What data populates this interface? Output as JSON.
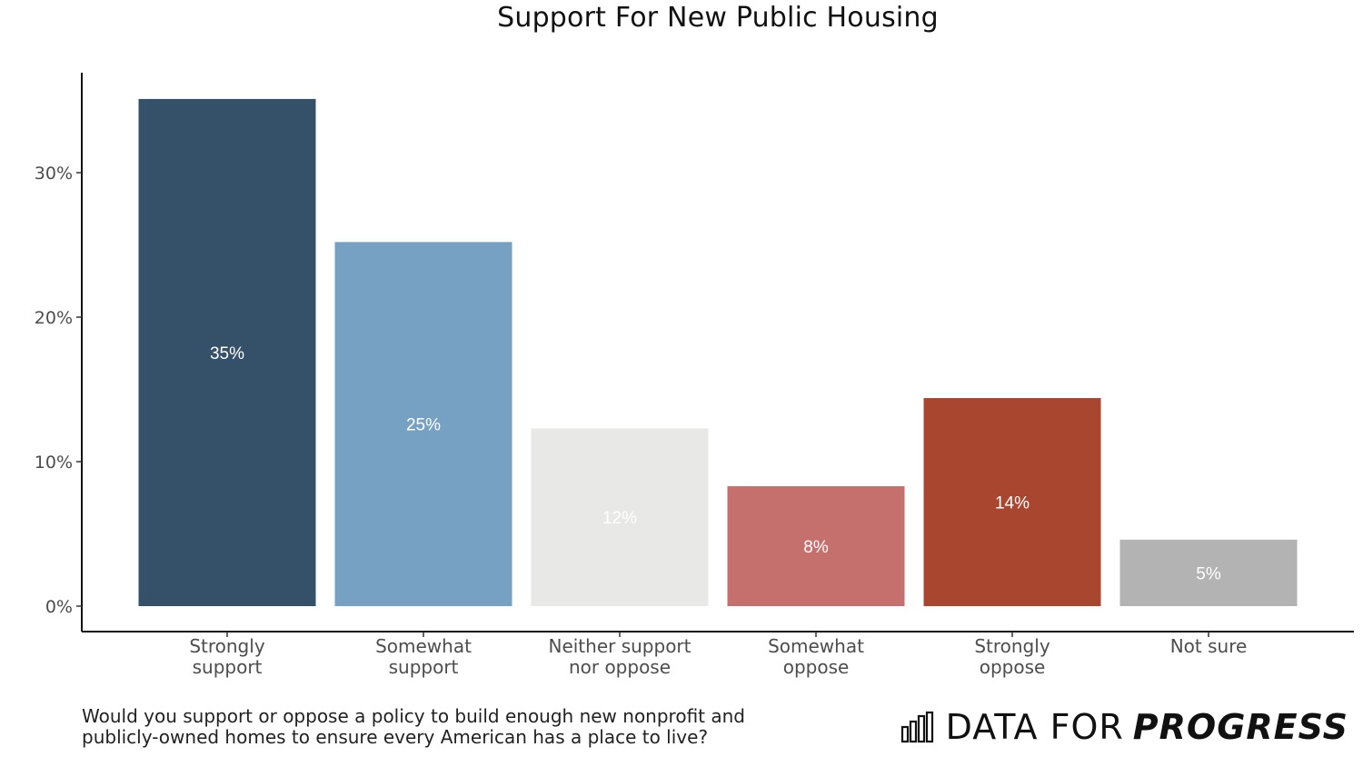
{
  "chart_data": {
    "type": "bar",
    "title": "Support For New Public Housing",
    "categories": [
      [
        "Strongly",
        "support"
      ],
      [
        "Somewhat",
        "support"
      ],
      [
        "Neither support",
        "nor oppose"
      ],
      [
        "Somewhat",
        "oppose"
      ],
      [
        "Strongly",
        "oppose"
      ],
      [
        "Not sure"
      ]
    ],
    "values": [
      35.1,
      25.2,
      12.3,
      8.3,
      14.4,
      4.6
    ],
    "data_labels": [
      "35%",
      "25%",
      "12%",
      "8%",
      "14%",
      "5%"
    ],
    "colors": [
      "#355069",
      "#76A1C2",
      "#E8E8E6",
      "#C6706D",
      "#A8462F",
      "#B3B3B3"
    ],
    "y_ticks": [
      0,
      10,
      20,
      30
    ],
    "y_tick_labels": [
      "0%",
      "10%",
      "20%",
      "30%"
    ],
    "ylim": [
      0,
      37.3
    ],
    "xlabel": "",
    "ylabel": "",
    "grid": false,
    "legend": "none"
  },
  "caption": "Would you support or oppose a policy to build enough new nonprofit and publicly-owned homes to ensure every American has a place to live?",
  "brand": {
    "light": "DATA FOR",
    "bold": "PROGRESS",
    "logo_icon": "bar-chart-logo-icon"
  }
}
